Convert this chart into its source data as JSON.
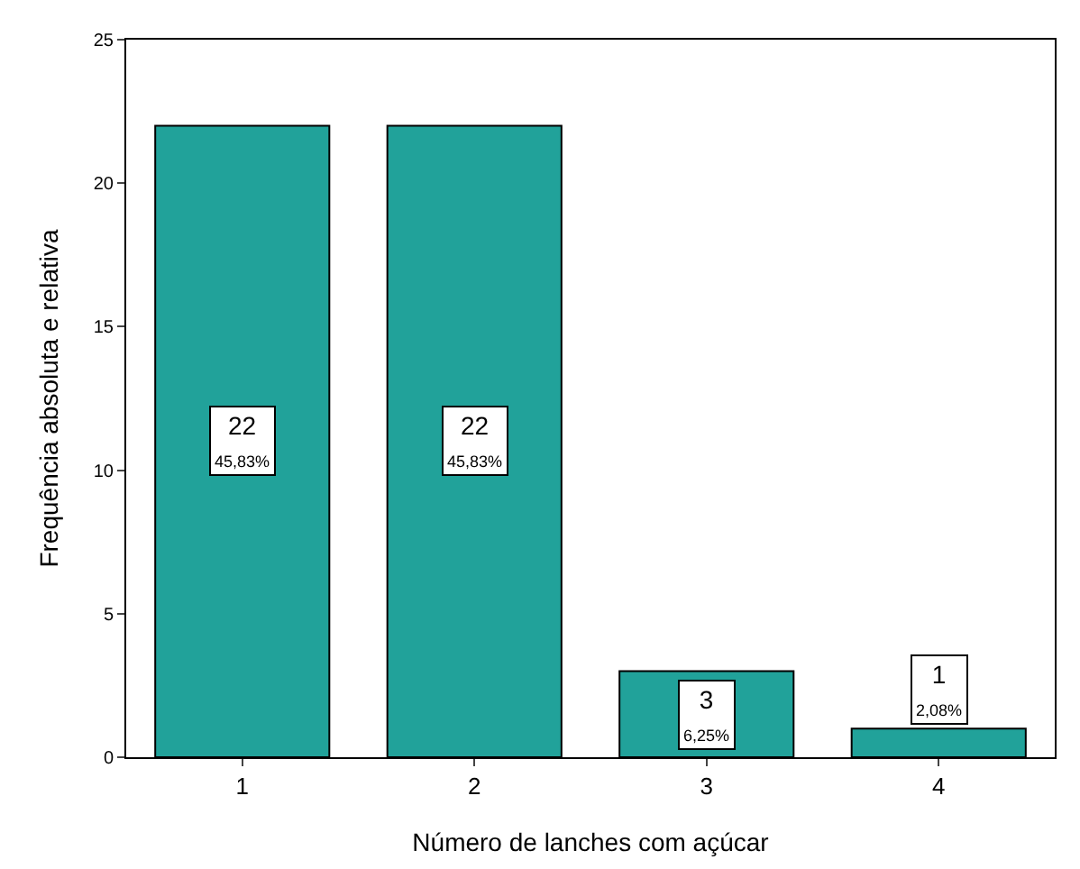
{
  "chart_data": {
    "type": "bar",
    "xlabel": "Número de lanches com açúcar",
    "ylabel": "Frequência absoluta e relativa",
    "categories": [
      "1",
      "2",
      "3",
      "4"
    ],
    "values": [
      22,
      22,
      3,
      1
    ],
    "value_labels": [
      "22\n45,83%",
      "22\n45,83%",
      "3\n6,25%",
      "1\n2,08%"
    ],
    "color": "#21a29a",
    "ylim": [
      0,
      25
    ],
    "yticks": [
      0,
      5,
      10,
      15,
      20,
      25
    ],
    "grid": false
  }
}
